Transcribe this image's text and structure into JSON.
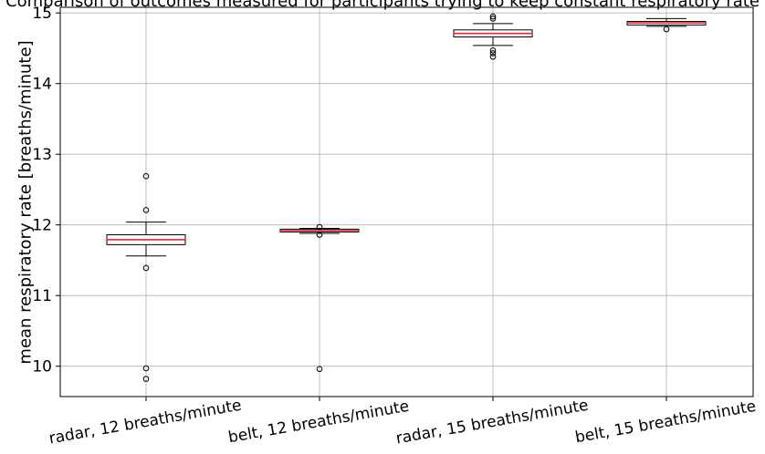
{
  "chart_data": {
    "type": "box",
    "title": "Comparison of outcomes measured for participants trying to keep constant respiratory rate",
    "xlabel": "",
    "ylabel": "mean respiratory rate [breaths/minute]",
    "ylim": [
      9.57,
      15.08
    ],
    "yticks": [
      10,
      11,
      12,
      13,
      14,
      15
    ],
    "grid": true,
    "categories": [
      "radar, 12 breaths/minute",
      "belt, 12 breaths/minute",
      "radar, 15 breaths/minute",
      "belt, 15 breaths/minute"
    ],
    "boxes": [
      {
        "category": "radar, 12 breaths/minute",
        "whisker_low": 11.56,
        "q1": 11.72,
        "median": 11.79,
        "q3": 11.86,
        "whisker_high": 12.04,
        "outliers": [
          12.69,
          12.21,
          11.39,
          9.97,
          9.82
        ]
      },
      {
        "category": "belt, 12 breaths/minute",
        "whisker_low": 11.88,
        "q1": 11.9,
        "median": 11.92,
        "q3": 11.94,
        "whisker_high": 11.95,
        "outliers": [
          11.97,
          11.86,
          9.96
        ]
      },
      {
        "category": "radar, 15 breaths/minute",
        "whisker_low": 14.54,
        "q1": 14.66,
        "median": 14.71,
        "q3": 14.76,
        "whisker_high": 14.85,
        "outliers": [
          14.95,
          14.92,
          14.47,
          14.43,
          14.38
        ]
      },
      {
        "category": "belt, 15 breaths/minute",
        "whisker_low": 14.81,
        "q1": 14.83,
        "median": 14.86,
        "q3": 14.88,
        "whisker_high": 14.92,
        "outliers": [
          14.77
        ]
      }
    ]
  }
}
